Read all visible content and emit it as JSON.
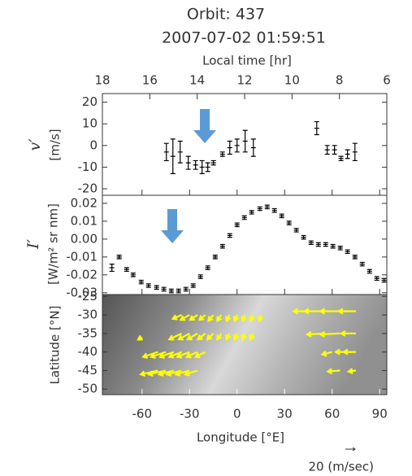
{
  "chart_data": [
    {
      "type": "errorbar",
      "title": "Orbit: 437",
      "subtitle": "2007-07-02 01:59:51",
      "x2label": "Local time [hr]",
      "x2lim": [
        18,
        6
      ],
      "x2ticks": [
        18,
        16,
        14,
        12,
        10,
        8,
        6
      ],
      "ylabel": "v′",
      "yunit": "[m/s]",
      "xlim": [
        -85,
        94.5
      ],
      "xticks": [
        -60,
        -30,
        0,
        30,
        60,
        90
      ],
      "ylim": [
        -23,
        24
      ],
      "yticks": [
        20,
        10,
        0,
        -10,
        -20
      ],
      "color": "#000000",
      "x": [
        -44.6,
        -40.5,
        -35.9,
        -30.8,
        -26.2,
        -22.1,
        -18.5,
        -14.9,
        -9.2,
        -4.6,
        0,
        5.1,
        10.3,
        50.3,
        56.9,
        61.5,
        65.6,
        69.7,
        74.4
      ],
      "values": [
        -3,
        -5,
        -3,
        -8,
        -9,
        -10,
        -10,
        -8,
        -4,
        -1,
        0,
        2,
        -1,
        8,
        -2,
        -2,
        -6,
        -4,
        -3
      ],
      "errors": [
        4,
        8,
        5,
        3,
        2,
        3,
        2,
        1,
        1,
        3,
        3,
        5,
        4,
        3,
        2,
        2,
        1,
        2,
        4
      ]
    },
    {
      "type": "errorbar",
      "ylabel": "I′",
      "yunit": "[W/m² sr nm]",
      "xlim": [
        -85,
        94.5
      ],
      "xticks": [
        -60,
        -30,
        0,
        30,
        60,
        90
      ],
      "ylim": [
        -0.031,
        0.0245
      ],
      "yticks": [
        0.02,
        0.01,
        {
          "value": 0,
          "label": "0.00"
        },
        -0.01,
        -0.02,
        -0.03
      ],
      "color": "#000000",
      "x": [
        -79,
        -74.4,
        -69.7,
        -65.6,
        -60.5,
        -55.9,
        -50.8,
        -46.2,
        -41.5,
        -36.9,
        -32.3,
        -27.7,
        -23.1,
        -18.5,
        -13.8,
        -9.2,
        -4.6,
        0,
        4.6,
        9.2,
        14.4,
        19,
        23.6,
        28.2,
        32.8,
        37.4,
        42,
        46.7,
        51.3,
        55.9,
        60.5,
        65.1,
        69.7,
        74.4,
        79,
        83.6,
        88.2,
        92.8
      ],
      "values": [
        -0.016,
        -0.01,
        -0.017,
        -0.02,
        -0.024,
        -0.026,
        -0.027,
        -0.028,
        -0.029,
        -0.029,
        -0.028,
        -0.026,
        -0.021,
        -0.016,
        -0.01,
        -0.004,
        0.002,
        0.008,
        0.012,
        0.015,
        0.017,
        0.018,
        0.016,
        0.013,
        0.009,
        0.005,
        0.001,
        -0.002,
        -0.003,
        -0.003,
        -0.004,
        -0.005,
        -0.007,
        -0.01,
        -0.014,
        -0.018,
        -0.022,
        -0.023
      ],
      "errors": [
        0.002,
        0.001,
        0.001,
        0.001,
        0.001,
        0.001,
        0.001,
        0.001,
        0.001,
        0.001,
        0.001,
        0.001,
        0.001,
        0.001,
        0.001,
        0.001,
        0.001,
        0.001,
        0.001,
        0.001,
        0.001,
        0.001,
        0.001,
        0.001,
        0.001,
        0.001,
        0.001,
        0.001,
        0.001,
        0.001,
        0.001,
        0.001,
        0.001,
        0.001,
        0.001,
        0.001,
        0.001,
        0.001
      ]
    },
    {
      "type": "quiver",
      "xlabel": "Longitude [°E]",
      "ylabel": "Latitude [°N]",
      "xlim": [
        -85,
        94.5
      ],
      "xticks": [
        -60,
        -30,
        0,
        30,
        60,
        90
      ],
      "ylim": [
        -51.5,
        -24.5
      ],
      "yticks": [
        -25,
        -30,
        -35,
        -40,
        -45,
        -50
      ],
      "color": "#ffff00",
      "key": {
        "value": 20,
        "label": "20 (m/sec)"
      },
      "vectors": {
        "lon": [
          -35,
          -30,
          -25,
          -20,
          -15,
          -10,
          -5,
          0,
          5,
          10,
          15,
          45,
          55,
          65,
          75,
          -60,
          -35,
          -30,
          -25,
          -20,
          -15,
          -10,
          -5,
          0,
          5,
          10,
          55,
          65,
          75,
          -50,
          -45,
          -40,
          -35,
          -30,
          -25,
          -20,
          60,
          70,
          75,
          -50,
          -45,
          -40,
          -35,
          -30,
          -25,
          65,
          75
        ],
        "lat": [
          -30,
          -30,
          -30,
          -30,
          -30,
          -30,
          -30,
          -30,
          -30,
          -30,
          -30,
          -29,
          -29,
          -29,
          -29,
          -36,
          -35,
          -35,
          -35,
          -35,
          -35,
          -35,
          -35,
          -35,
          -35,
          -35,
          -35,
          -35,
          -35,
          -40,
          -40,
          -40,
          -40,
          -40,
          -40,
          -40,
          -40,
          -40,
          -40,
          -45,
          -45,
          -45,
          -45,
          -45,
          -45,
          -45,
          -45
        ],
        "u": [
          -18,
          -18,
          -15,
          -12,
          -10,
          -8,
          -5,
          -5,
          -5,
          -5,
          -3,
          -30,
          -40,
          -40,
          -35,
          -8,
          -25,
          -22,
          -20,
          -15,
          -12,
          -8,
          -5,
          -5,
          -5,
          -5,
          -35,
          -40,
          -30,
          -30,
          -30,
          -28,
          -25,
          -25,
          -22,
          -20,
          -20,
          -25,
          -25,
          -35,
          -35,
          -30,
          -30,
          -28,
          -25,
          -25,
          -15
        ],
        "v": [
          -8,
          -10,
          -10,
          -10,
          -12,
          -12,
          -12,
          -12,
          -12,
          -12,
          -12,
          0,
          0,
          0,
          0,
          -5,
          -12,
          -12,
          -12,
          -12,
          -12,
          -12,
          -12,
          -12,
          -12,
          -12,
          -2,
          -2,
          0,
          -10,
          -10,
          -10,
          -10,
          -10,
          -10,
          -10,
          -5,
          0,
          0,
          -8,
          -8,
          -8,
          -8,
          -8,
          -8,
          -2,
          -2
        ]
      }
    }
  ]
}
